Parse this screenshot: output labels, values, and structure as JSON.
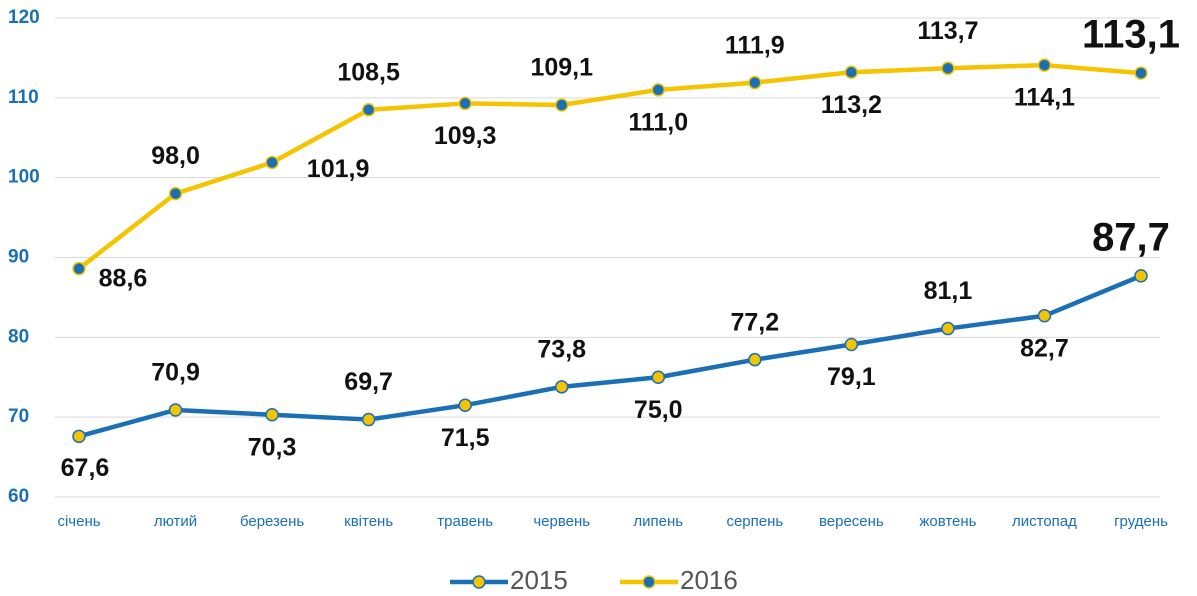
{
  "chart_data": {
    "type": "line",
    "categories": [
      "січень",
      "лютий",
      "березень",
      "квітень",
      "травень",
      "червень",
      "липень",
      "серпень",
      "вересень",
      "жовтень",
      "листопад",
      "грудень"
    ],
    "series": [
      {
        "name": "2015",
        "color": "#1a6fb5",
        "marker_color": "#f5c400",
        "values": [
          67.6,
          70.9,
          70.3,
          69.7,
          71.5,
          73.8,
          75.0,
          77.2,
          79.1,
          81.1,
          82.7,
          87.7
        ],
        "value_labels": [
          "67,6",
          "70,9",
          "70,3",
          "69,7",
          "71,5",
          "73,8",
          "75,0",
          "77,2",
          "79,1",
          "81,1",
          "82,7",
          "87,7"
        ]
      },
      {
        "name": "2016",
        "color": "#f5c400",
        "marker_color": "#1a6fb5",
        "values": [
          88.6,
          98.0,
          101.9,
          108.5,
          109.3,
          109.1,
          111.0,
          111.9,
          113.2,
          113.7,
          114.1,
          113.1
        ],
        "value_labels": [
          "88,6",
          "98,0",
          "101,9",
          "108,5",
          "109,3",
          "109,1",
          "111,0",
          "111,9",
          "113,2",
          "113,7",
          "114,1",
          "113,1"
        ]
      }
    ],
    "ylim": [
      60,
      120
    ],
    "yticks": [
      60,
      70,
      80,
      90,
      100,
      110,
      120
    ],
    "grid": true,
    "legend": "bottom"
  }
}
